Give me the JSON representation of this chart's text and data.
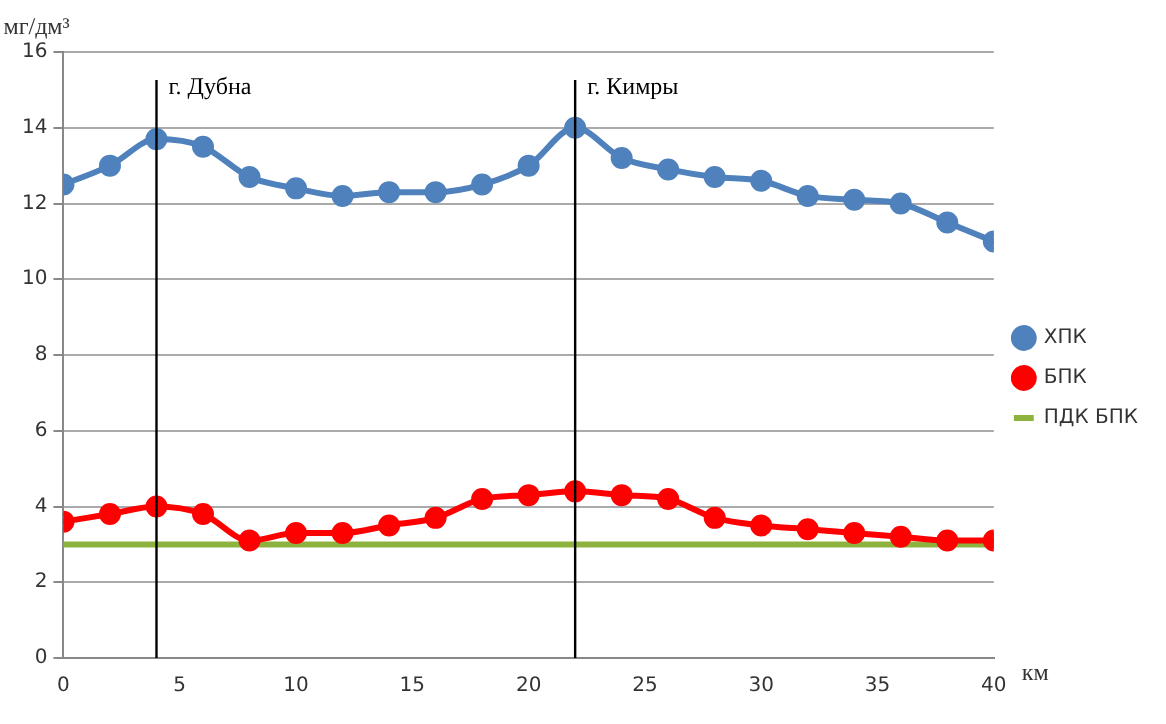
{
  "chart_data": {
    "type": "line",
    "x": [
      0,
      2,
      4,
      6,
      8,
      10,
      12,
      14,
      16,
      18,
      20,
      22,
      24,
      26,
      28,
      30,
      32,
      34,
      36,
      38,
      40
    ],
    "series": [
      {
        "name": "ХПК",
        "color": "#4f81bd",
        "marker": "circle",
        "values": [
          12.5,
          13.0,
          13.7,
          13.5,
          12.7,
          12.4,
          12.2,
          12.3,
          12.3,
          12.5,
          13.0,
          14.0,
          13.2,
          12.9,
          12.7,
          12.6,
          12.2,
          12.1,
          12.0,
          11.5,
          11.0
        ]
      },
      {
        "name": "БПК",
        "color": "#ff0000",
        "marker": "circle",
        "values": [
          3.6,
          3.8,
          4.0,
          3.8,
          3.1,
          3.3,
          3.3,
          3.5,
          3.7,
          4.2,
          4.3,
          4.4,
          4.3,
          4.2,
          3.7,
          3.5,
          3.4,
          3.3,
          3.2,
          3.1,
          3.1
        ]
      },
      {
        "name": "ПДК БПК",
        "color": "#8db33e",
        "marker": "none",
        "x": [
          0,
          40
        ],
        "values": [
          3,
          3
        ]
      }
    ],
    "xlabel": "км",
    "ylabel": "мг/дм³",
    "xlim": [
      0,
      40
    ],
    "xticks": [
      0,
      5,
      10,
      15,
      20,
      25,
      30,
      35,
      40
    ],
    "ylim": [
      0,
      16
    ],
    "yticks": [
      0,
      2,
      4,
      6,
      8,
      10,
      12,
      14,
      16
    ],
    "ref_lines": [
      {
        "axis": "x",
        "value": 4,
        "label": "г. Дубна",
        "color": "#000000"
      },
      {
        "axis": "x",
        "value": 22,
        "label": "г. Кимры",
        "color": "#000000"
      }
    ],
    "grid": "y",
    "legend": "right",
    "line_style": "solid"
  }
}
